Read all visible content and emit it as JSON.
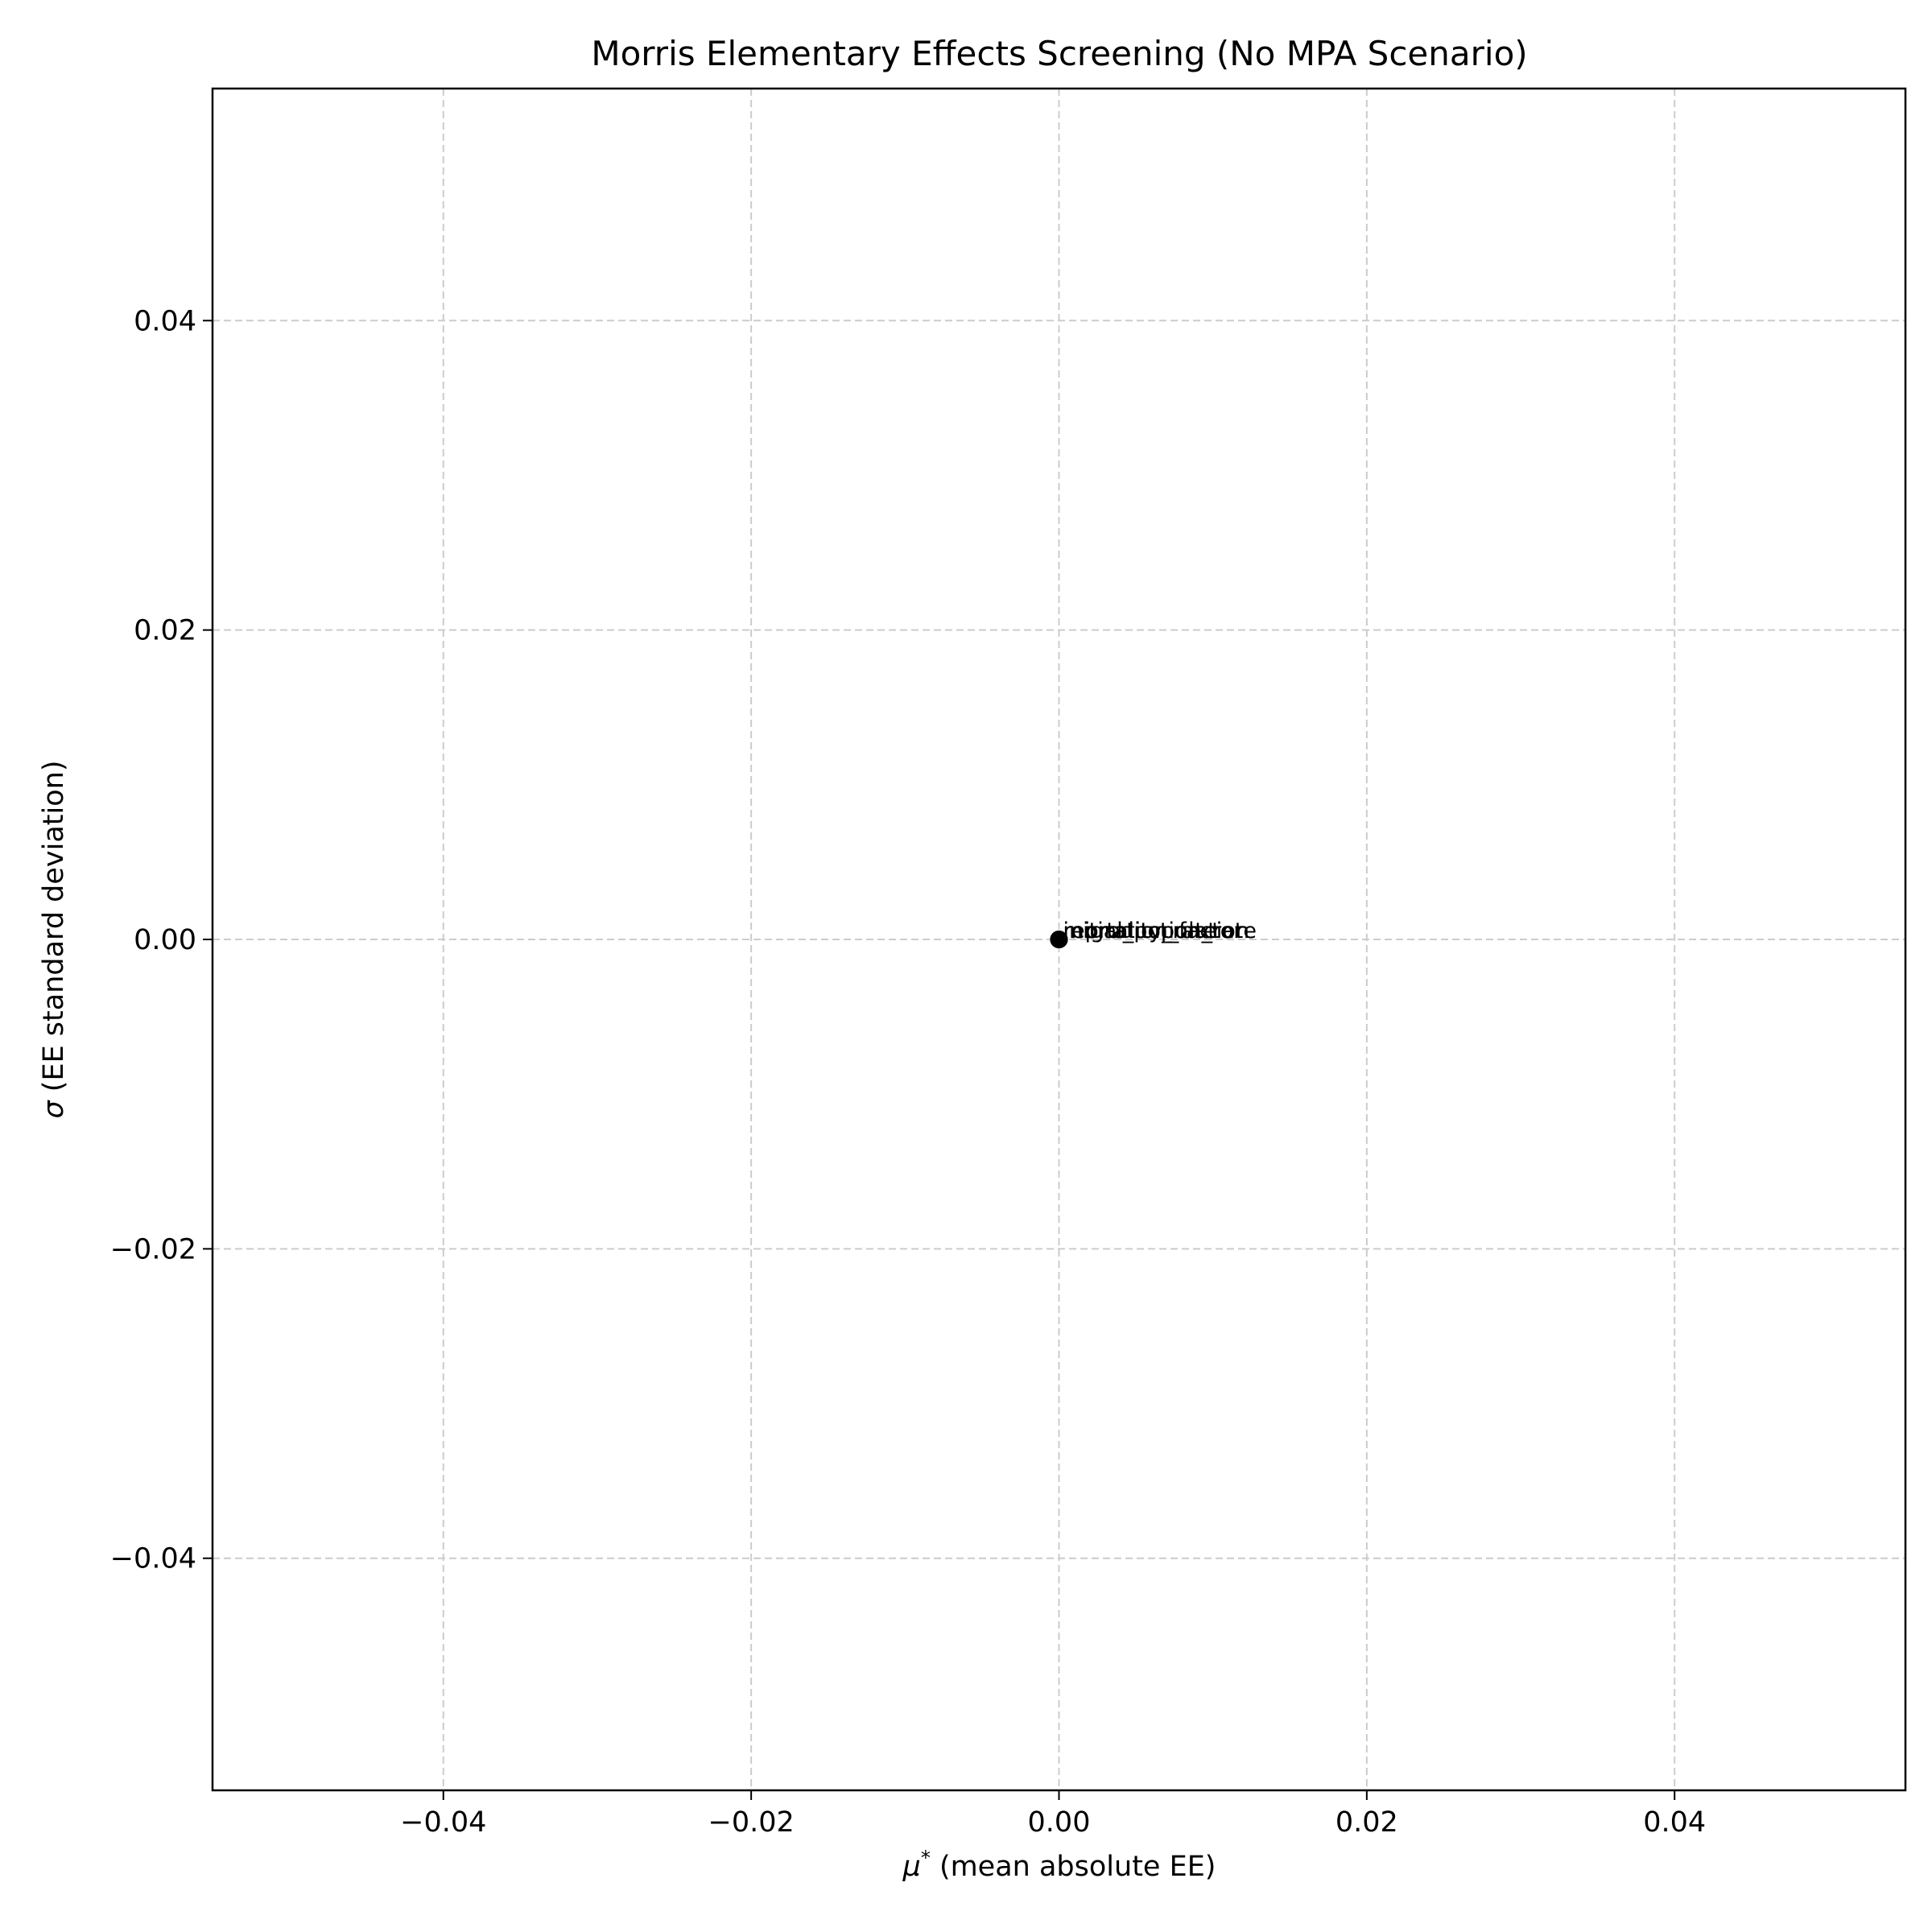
{
  "chart_data": {
    "type": "scatter",
    "title": "Morris Elementary Effects Screening (No MPA Scenario)",
    "xlabel_symbol": "μ",
    "xlabel_sup": "*",
    "xlabel_text": " (mean absolute EE)",
    "ylabel_symbol": "σ",
    "ylabel_text": " (EE standard deviation)",
    "xlim": [
      -0.055,
      0.055
    ],
    "ylim": [
      -0.055,
      0.055
    ],
    "xticks": [
      -0.04,
      -0.02,
      0.0,
      0.02,
      0.04
    ],
    "yticks": [
      -0.04,
      -0.02,
      0.0,
      0.02,
      0.04
    ],
    "xtick_labels": [
      "−0.04",
      "−0.02",
      "0.00",
      "0.02",
      "0.04"
    ],
    "ytick_labels": [
      "−0.04",
      "−0.02",
      "0.00",
      "0.02",
      "0.04"
    ],
    "grid": true,
    "grid_color": "#cccccc",
    "point_color": "#000000",
    "points": [
      {
        "label": "reproduction_rate",
        "x": 0.0,
        "y": 0.0
      },
      {
        "label": "mortality_rate",
        "x": 0.0,
        "y": 0.0
      },
      {
        "label": "initial_population",
        "x": 0.0,
        "y": 0.0
      },
      {
        "label": "migration_factor",
        "x": 0.0,
        "y": 0.0
      }
    ]
  }
}
